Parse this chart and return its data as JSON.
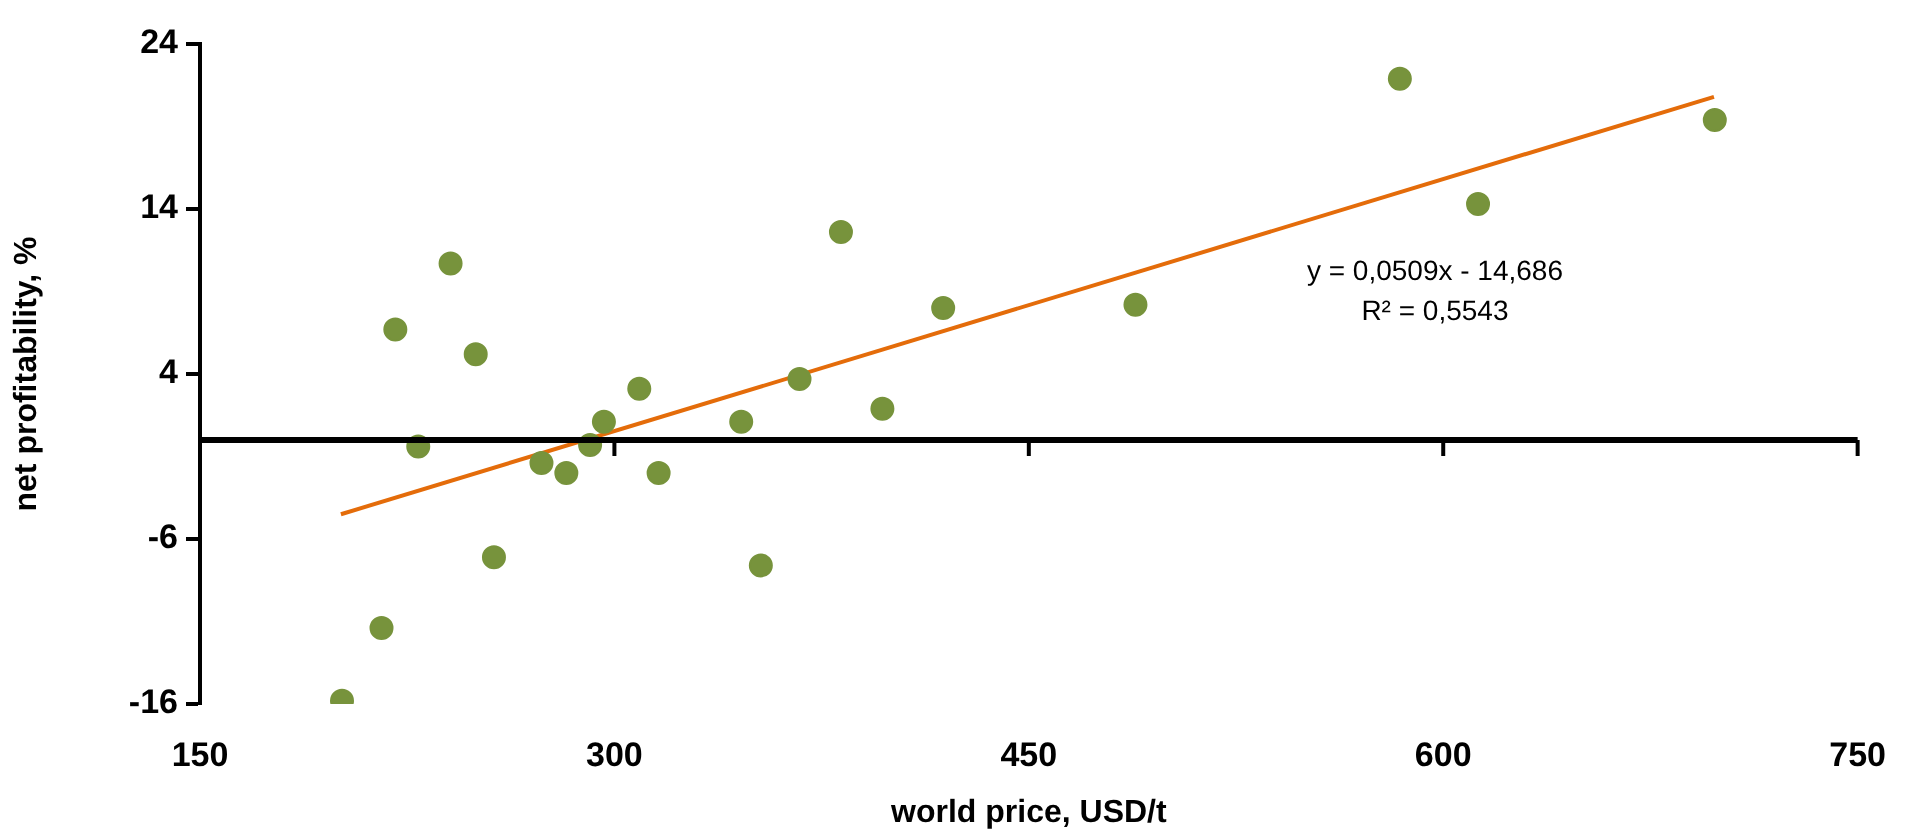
{
  "chart_data": {
    "type": "scatter",
    "xlabel": "world price, USD/t",
    "ylabel": "net profitability, %",
    "xlim": [
      150,
      750
    ],
    "xticks": [
      150,
      300,
      450,
      600,
      750
    ],
    "ylim": [
      -16,
      24
    ],
    "yticks": [
      -16,
      -6,
      4,
      14,
      24
    ],
    "marker": "circle",
    "legend": false,
    "annotations": [
      "y = 0,0509x - 14,686",
      "R² = 0,5543"
    ],
    "series": [
      {
        "color": "#77933c",
        "x": [
          201.4,
          215.7,
          220.7,
          229,
          240.7,
          249.8,
          256.4,
          273.6,
          282.6,
          291.2,
          296.2,
          309,
          316,
          345.9,
          353,
          367,
          382,
          397,
          419,
          488.6,
          584.3,
          612.6,
          698.3
        ],
        "values": [
          -15.8,
          -11.4,
          6.7,
          -0.4,
          10.7,
          5.2,
          -7.1,
          -1.4,
          -2,
          -0.3,
          1.1,
          3.1,
          -2,
          1.1,
          -7.6,
          3.7,
          12.6,
          1.9,
          8,
          8.2,
          21.9,
          14.3,
          19.4
        ]
      },
      {
        "type": "line",
        "color": "#e46c0a",
        "marker": "none",
        "x": [
          201,
          698
        ],
        "values": [
          -4.5,
          20.8
        ]
      }
    ]
  }
}
